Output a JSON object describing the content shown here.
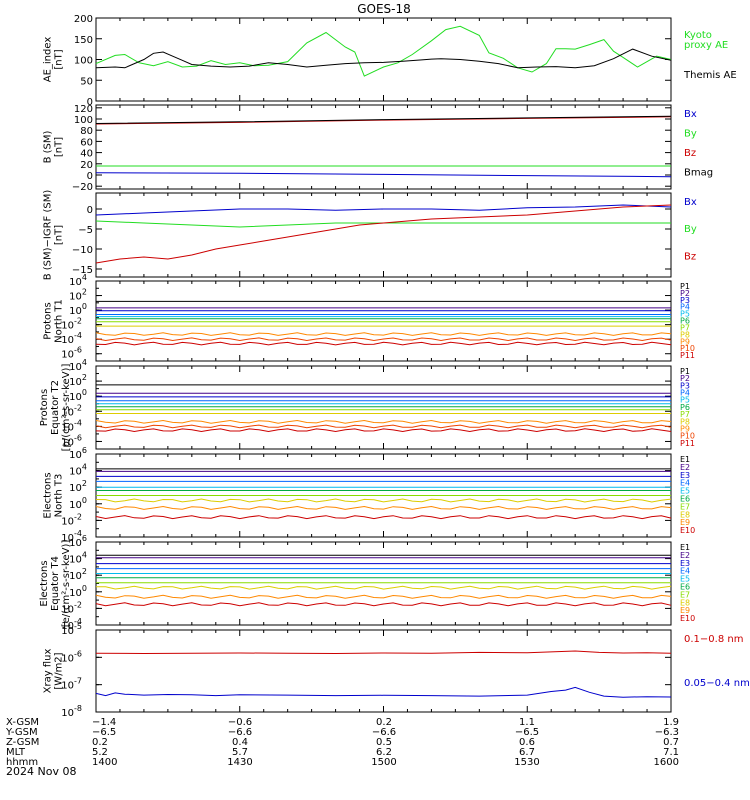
{
  "figure": {
    "title": "GOES-18",
    "date": "2024 Nov 08"
  },
  "colors": {
    "black": "#000000",
    "green": "#22dd22",
    "blue": "#0000cc",
    "red": "#cc0000",
    "axis": "#000000"
  },
  "chart_data": [
    {
      "type": "line",
      "panel": "ae",
      "ylabel": [
        "AE_index",
        "[nT]"
      ],
      "ylim": [
        0,
        200
      ],
      "yticks": [
        0,
        50,
        100,
        150,
        200
      ],
      "ytick_labels": [
        "0",
        "50",
        "100",
        "150",
        "200"
      ],
      "x_range": [
        "14:00",
        "16:00"
      ],
      "series": [
        {
          "name": "Kyoto proxy AE",
          "color": "#22dd22",
          "x": [
            0,
            4,
            6,
            9,
            12,
            15,
            18,
            21,
            24,
            27,
            30,
            33,
            36,
            40,
            44,
            48,
            52,
            54,
            56,
            60,
            63,
            66,
            70,
            73,
            76,
            80,
            82,
            85,
            88,
            91,
            94,
            96,
            98,
            100,
            103,
            106,
            108,
            110,
            113,
            117,
            120
          ],
          "y": [
            90,
            110,
            112,
            92,
            85,
            95,
            82,
            84,
            97,
            88,
            92,
            85,
            86,
            95,
            140,
            165,
            130,
            118,
            60,
            82,
            92,
            112,
            145,
            172,
            180,
            158,
            116,
            103,
            80,
            70,
            90,
            126,
            126,
            125,
            136,
            148,
            120,
            105,
            82,
            108,
            100
          ]
        },
        {
          "name": "Themis AE",
          "color": "#000000",
          "x": [
            0,
            4,
            6,
            10,
            12,
            14,
            16,
            18,
            20,
            24,
            28,
            32,
            36,
            40,
            44,
            48,
            52,
            56,
            60,
            64,
            68,
            70,
            72,
            76,
            80,
            84,
            88,
            92,
            96,
            100,
            104,
            108,
            112,
            116,
            120
          ],
          "y": [
            80,
            82,
            80,
            100,
            115,
            118,
            108,
            98,
            88,
            84,
            82,
            84,
            92,
            88,
            82,
            86,
            90,
            92,
            93,
            96,
            99,
            101,
            102,
            100,
            96,
            90,
            80,
            82,
            83,
            80,
            85,
            102,
            125,
            108,
            98
          ]
        }
      ],
      "legend": [
        {
          "text": "Kyoto",
          "color": "#22dd22"
        },
        {
          "text": "proxy AE",
          "color": "#22dd22"
        },
        {
          "text": "Themis AE",
          "color": "#000000"
        }
      ]
    },
    {
      "type": "line",
      "panel": "bsm",
      "ylabel": [
        "B (SM)",
        "[nT]"
      ],
      "ylim": [
        -25,
        125
      ],
      "yticks": [
        -20,
        0,
        20,
        40,
        60,
        80,
        100,
        120
      ],
      "ytick_labels": [
        "−20",
        "0",
        "20",
        "40",
        "60",
        "80",
        "100",
        "120"
      ],
      "x_range": [
        "14:00",
        "16:00"
      ],
      "series": [
        {
          "name": "Bx",
          "color": "#0000cc",
          "x": [
            0,
            30,
            60,
            90,
            120
          ],
          "y": [
            4,
            3,
            1,
            -1,
            -3
          ]
        },
        {
          "name": "By",
          "color": "#22dd22",
          "x": [
            0,
            30,
            60,
            90,
            120
          ],
          "y": [
            16,
            16,
            16,
            16,
            16
          ]
        },
        {
          "name": "Bz",
          "color": "#cc0000",
          "x": [
            0,
            30,
            60,
            90,
            120
          ],
          "y": [
            91,
            94,
            98,
            101,
            104
          ]
        },
        {
          "name": "Bmag",
          "color": "#000000",
          "x": [
            0,
            30,
            60,
            90,
            120
          ],
          "y": [
            92,
            95,
            99,
            102,
            105
          ]
        }
      ],
      "legend": [
        {
          "text": "Bx",
          "color": "#0000cc"
        },
        {
          "text": "By",
          "color": "#22dd22"
        },
        {
          "text": "Bz",
          "color": "#cc0000"
        },
        {
          "text": "Bmag",
          "color": "#000000"
        }
      ]
    },
    {
      "type": "line",
      "panel": "bigrf",
      "ylabel": [
        "B (SM)−IGRF (SM)",
        "[nT]"
      ],
      "ylim": [
        -17,
        4
      ],
      "yticks": [
        -15,
        -10,
        -5,
        0
      ],
      "ytick_labels": [
        "−15",
        "−10",
        "−5",
        "0"
      ],
      "x_range": [
        "14:00",
        "16:00"
      ],
      "series": [
        {
          "name": "Bx",
          "color": "#0000cc",
          "x": [
            0,
            10,
            20,
            30,
            40,
            50,
            60,
            70,
            80,
            90,
            100,
            110,
            120
          ],
          "y": [
            -1.5,
            -1,
            -0.5,
            0,
            0,
            -0.3,
            0,
            0,
            -0.3,
            0.3,
            0.5,
            1,
            0.5
          ]
        },
        {
          "name": "By",
          "color": "#22dd22",
          "x": [
            0,
            10,
            20,
            30,
            40,
            50,
            60,
            70,
            80,
            90,
            100,
            110,
            120
          ],
          "y": [
            -3,
            -3.5,
            -4,
            -4.5,
            -4,
            -3.5,
            -3.5,
            -3.5,
            -3.5,
            -3.5,
            -3.5,
            -3.5,
            -3.5
          ]
        },
        {
          "name": "Bz",
          "color": "#cc0000",
          "x": [
            0,
            5,
            10,
            15,
            20,
            25,
            30,
            35,
            40,
            45,
            50,
            55,
            60,
            70,
            80,
            90,
            100,
            110,
            120
          ],
          "y": [
            -13.5,
            -12.5,
            -12,
            -12.5,
            -11.5,
            -10,
            -9,
            -8,
            -7,
            -6,
            -5,
            -4,
            -3.5,
            -2.5,
            -2,
            -1.5,
            -0.5,
            0.5,
            1
          ]
        }
      ],
      "legend": [
        {
          "text": "Bx",
          "color": "#0000cc"
        },
        {
          "text": "By",
          "color": "#22dd22"
        },
        {
          "text": "Bz",
          "color": "#cc0000"
        }
      ]
    },
    {
      "type": "line",
      "panel": "protons_t1",
      "log": true,
      "ylabel": [
        "Protons",
        "North T1"
      ],
      "ylim_log10": [
        -7,
        4
      ],
      "yticks_log10": [
        -6,
        -4,
        -2,
        0,
        2,
        4
      ],
      "x_range": [
        "14:00",
        "16:00"
      ],
      "series": [
        {
          "name": "P1",
          "color": "#000000",
          "log10": 1.2
        },
        {
          "name": "P2",
          "color": "#440088",
          "log10": 0.3
        },
        {
          "name": "P3",
          "color": "#0000cc",
          "log10": -0.1
        },
        {
          "name": "P4",
          "color": "#0066ff",
          "log10": -0.6
        },
        {
          "name": "P5",
          "color": "#00bbee",
          "log10": -0.9
        },
        {
          "name": "P6",
          "color": "#00aa44",
          "log10": -1.2
        },
        {
          "name": "P7",
          "color": "#88dd00",
          "log10": -1.6
        },
        {
          "name": "P8",
          "color": "#ddcc00",
          "log10": -2.2
        },
        {
          "name": "P9",
          "color": "#ff8800",
          "log10": -3.3
        },
        {
          "name": "P10",
          "color": "#ee4400",
          "log10": -4.0
        },
        {
          "name": "P11",
          "color": "#cc0000",
          "log10": -4.6
        }
      ]
    },
    {
      "type": "line",
      "panel": "protons_t2",
      "log": true,
      "ylabel": [
        "Protons",
        "Equator T2",
        "[p/(cm²-s-sr-keV)]"
      ],
      "ylim_log10": [
        -7,
        4
      ],
      "yticks_log10": [
        -6,
        -4,
        -2,
        0,
        2,
        4
      ],
      "x_range": [
        "14:00",
        "16:00"
      ],
      "series": [
        {
          "name": "P1",
          "color": "#000000",
          "log10": 1.5
        },
        {
          "name": "P2",
          "color": "#440088",
          "log10": 0.4
        },
        {
          "name": "P3",
          "color": "#0000cc",
          "log10": -0.1
        },
        {
          "name": "P4",
          "color": "#0066ff",
          "log10": -0.6
        },
        {
          "name": "P5",
          "color": "#00bbee",
          "log10": -1.0
        },
        {
          "name": "P6",
          "color": "#00aa44",
          "log10": -1.4
        },
        {
          "name": "P7",
          "color": "#88dd00",
          "log10": -1.8
        },
        {
          "name": "P8",
          "color": "#ddcc00",
          "log10": -2.3
        },
        {
          "name": "P9",
          "color": "#ff8800",
          "log10": -3.4
        },
        {
          "name": "P10",
          "color": "#ee4400",
          "log10": -4.0
        },
        {
          "name": "P11",
          "color": "#cc0000",
          "log10": -4.5
        }
      ]
    },
    {
      "type": "line",
      "panel": "electrons_t3",
      "log": true,
      "ylabel": [
        "Electrons",
        "North T3"
      ],
      "ylim_log10": [
        -4,
        6
      ],
      "yticks_log10": [
        -4,
        -2,
        0,
        2,
        4,
        6
      ],
      "x_range": [
        "14:00",
        "16:00"
      ],
      "series": [
        {
          "name": "E1",
          "color": "#000000",
          "log10": 4.2
        },
        {
          "name": "E2",
          "color": "#440088",
          "log10": 3.9
        },
        {
          "name": "E3",
          "color": "#0000cc",
          "log10": 3.3
        },
        {
          "name": "E4",
          "color": "#0066ff",
          "log10": 2.7
        },
        {
          "name": "E5",
          "color": "#00bbee",
          "log10": 2.0
        },
        {
          "name": "E6",
          "color": "#00aa44",
          "log10": 1.6
        },
        {
          "name": "E7",
          "color": "#88dd00",
          "log10": 1.0
        },
        {
          "name": "E8",
          "color": "#ddcc00",
          "log10": 0.4
        },
        {
          "name": "E9",
          "color": "#ff8800",
          "log10": -0.5
        },
        {
          "name": "E10",
          "color": "#cc0000",
          "log10": -1.6
        }
      ]
    },
    {
      "type": "line",
      "panel": "electrons_t4",
      "log": true,
      "ylabel": [
        "Electrons",
        "Equator T4",
        "[e/(cm²-s-sr-keV)]"
      ],
      "ylim_log10": [
        -4,
        6
      ],
      "yticks_log10": [
        -4,
        -2,
        0,
        2,
        4,
        6
      ],
      "x_range": [
        "14:00",
        "16:00"
      ],
      "series": [
        {
          "name": "E1",
          "color": "#000000",
          "log10": 4.4
        },
        {
          "name": "E2",
          "color": "#440088",
          "log10": 4.1
        },
        {
          "name": "E3",
          "color": "#0000cc",
          "log10": 3.4
        },
        {
          "name": "E4",
          "color": "#0066ff",
          "log10": 2.8
        },
        {
          "name": "E5",
          "color": "#00bbee",
          "log10": 2.2
        },
        {
          "name": "E6",
          "color": "#00aa44",
          "log10": 1.7
        },
        {
          "name": "E7",
          "color": "#88dd00",
          "log10": 1.1
        },
        {
          "name": "E8",
          "color": "#ddcc00",
          "log10": 0.5
        },
        {
          "name": "E9",
          "color": "#ff8800",
          "log10": -0.6
        },
        {
          "name": "E10",
          "color": "#cc0000",
          "log10": -1.5
        }
      ]
    },
    {
      "type": "line",
      "panel": "xray",
      "log": true,
      "ylabel": [
        "Xray flux",
        "[W/m2]"
      ],
      "ylim_log10": [
        -8,
        -5
      ],
      "yticks_log10": [
        -8,
        -7,
        -6,
        -5
      ],
      "x_range": [
        "14:00",
        "16:00"
      ],
      "series": [
        {
          "name": "0.1–0.8 nm",
          "color": "#cc0000",
          "x": [
            0,
            10,
            20,
            30,
            40,
            50,
            60,
            70,
            80,
            90,
            95,
            100,
            105,
            110,
            115,
            120
          ],
          "y_log10": [
            -5.85,
            -5.86,
            -5.85,
            -5.84,
            -5.85,
            -5.86,
            -5.84,
            -5.85,
            -5.82,
            -5.83,
            -5.8,
            -5.77,
            -5.82,
            -5.84,
            -5.83,
            -5.85
          ]
        },
        {
          "name": "0.05–0.4 nm",
          "color": "#0000cc",
          "x": [
            0,
            2,
            4,
            6,
            10,
            15,
            20,
            25,
            30,
            40,
            50,
            60,
            70,
            80,
            85,
            90,
            95,
            98,
            100,
            103,
            106,
            110,
            115,
            120
          ],
          "y_log10": [
            -7.32,
            -7.4,
            -7.3,
            -7.35,
            -7.38,
            -7.36,
            -7.37,
            -7.4,
            -7.37,
            -7.38,
            -7.4,
            -7.39,
            -7.4,
            -7.42,
            -7.4,
            -7.38,
            -7.25,
            -7.2,
            -7.1,
            -7.28,
            -7.42,
            -7.46,
            -7.44,
            -7.45
          ]
        }
      ],
      "legend": [
        {
          "text": "0.1−0.8 nm",
          "color": "#cc0000"
        },
        {
          "text": "0.05−0.4 nm",
          "color": "#0000cc"
        }
      ]
    }
  ],
  "axis_table": {
    "rows": [
      {
        "label": "X-GSM",
        "values": [
          "−1.4",
          "−0.6",
          "0.2",
          "1.1",
          "1.9"
        ]
      },
      {
        "label": "Y-GSM",
        "values": [
          "−6.5",
          "−6.6",
          "−6.6",
          "−6.5",
          "−6.3"
        ]
      },
      {
        "label": "Z-GSM",
        "values": [
          "0.2",
          "0.4",
          "0.5",
          "0.6",
          "0.7"
        ]
      },
      {
        "label": "MLT",
        "values": [
          "5.2",
          "5.7",
          "6.2",
          "6.7",
          "7.1"
        ]
      },
      {
        "label": "hhmm",
        "values": [
          "1400",
          "1430",
          "1500",
          "1530",
          "1600"
        ]
      }
    ]
  }
}
